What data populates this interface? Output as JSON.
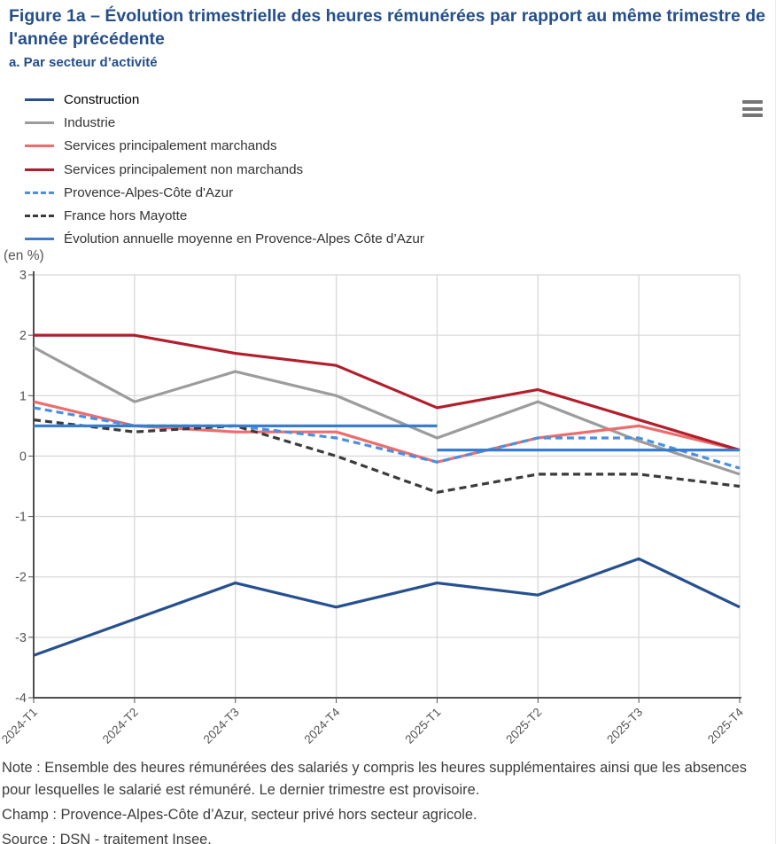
{
  "header": {
    "title": "Figure 1a – Évolution trimestrielle des heures rémunérées par rapport au même trimestre de l'année précédente",
    "subtitle": "a. Par secteur d’activité"
  },
  "unit_label": "(en %)",
  "chart_menu": {
    "icon": "hamburger-menu"
  },
  "colors": {
    "title_blue": "#254f8a",
    "axis": "#4f4f4f",
    "grid": "#d8d8d8",
    "tick_label": "#555555",
    "legend_label": "#333333",
    "legend_label_active": "#000000",
    "note_text": "#3d3d3d",
    "menu_icon": "#757575"
  },
  "chart_data": {
    "type": "line",
    "categories": [
      "2024-T1",
      "2024-T2",
      "2024-T3",
      "2024-T4",
      "2025-T1",
      "2025-T2",
      "2025-T3",
      "2025-T4"
    ],
    "xlabel": "",
    "ylabel": "(en %)",
    "ylim": [
      -4,
      3
    ],
    "yticks": [
      3,
      2,
      1,
      0,
      -1,
      -2,
      -3,
      -4
    ],
    "grid": true,
    "legend_position": "top-left",
    "series": [
      {
        "name": "Construction",
        "color": "#27508f",
        "dash": "solid",
        "emphasized": true,
        "values": [
          -3.3,
          -2.7,
          -2.1,
          -2.5,
          -2.1,
          -2.3,
          -1.7,
          -2.5
        ]
      },
      {
        "name": "Industrie",
        "color": "#9c9c9c",
        "dash": "solid",
        "values": [
          1.8,
          0.9,
          1.4,
          1.0,
          0.3,
          0.9,
          0.25,
          -0.3
        ]
      },
      {
        "name": "Services principalement marchands",
        "color": "#ed6d6c",
        "dash": "solid",
        "values": [
          0.9,
          0.5,
          0.4,
          0.4,
          -0.1,
          0.3,
          0.5,
          0.1
        ]
      },
      {
        "name": "Services principalement non marchands",
        "color": "#b21f2c",
        "dash": "solid",
        "values": [
          2.0,
          2.0,
          1.7,
          1.5,
          0.8,
          1.1,
          0.6,
          0.1
        ]
      },
      {
        "name": "Provence-Alpes-Côte d'Azur",
        "color": "#4a90e2",
        "dash": "dashed",
        "values": [
          0.8,
          0.5,
          0.5,
          0.3,
          -0.1,
          0.3,
          0.3,
          -0.2
        ]
      },
      {
        "name": "France hors Mayotte",
        "color": "#3b3b3b",
        "dash": "dashed",
        "values": [
          0.6,
          0.4,
          0.5,
          0.0,
          -0.6,
          -0.3,
          -0.3,
          -0.5
        ]
      },
      {
        "name": "Évolution annuelle moyenne en Provence-Alpes Côte d’Azur",
        "color": "#3a7dcd",
        "dash": "solid",
        "segments": [
          [
            0.5,
            0.5,
            0.5,
            0.5,
            0.5,
            null,
            null,
            null
          ],
          [
            null,
            null,
            null,
            null,
            0.1,
            0.1,
            0.1,
            0.1
          ]
        ]
      }
    ]
  },
  "notes": {
    "note": "Note : Ensemble des heures rémunérées des salariés y compris les heures supplémentaires ainsi que les absences pour lesquelles le salarié est rémunéré. Le dernier trimestre est provisoire.",
    "champ": "Champ : Provence-Alpes-Côte d’Azur, secteur privé hors secteur agricole.",
    "source": "Source : DSN - traitement Insee."
  }
}
